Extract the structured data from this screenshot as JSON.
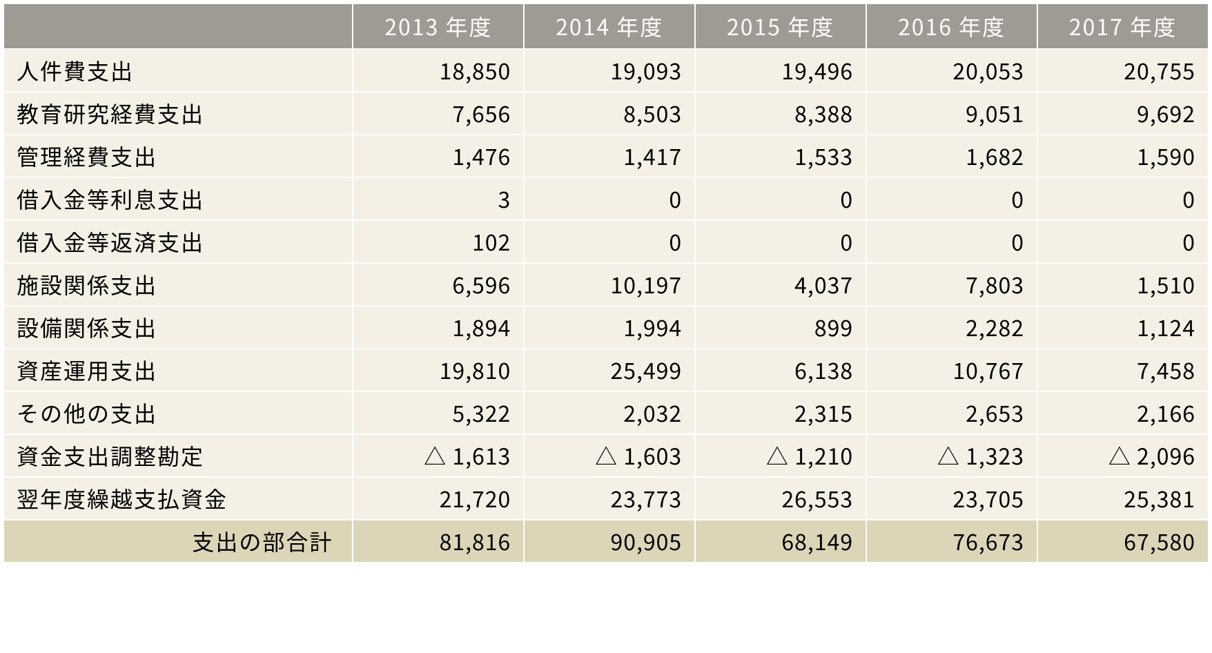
{
  "table": {
    "type": "table",
    "background_color": "#ffffff",
    "header_bg": "#9d9b93",
    "header_text_color": "#ffffff",
    "body_bg": "#f4f0e6",
    "total_bg": "#ddd5b8",
    "body_text_color": "#000000",
    "border_color": "#ffffff",
    "border_width": 2,
    "font_size_pt": 24,
    "columns": [
      "",
      "2013 年度",
      "2014 年度",
      "2015 年度",
      "2016 年度",
      "2017 年度"
    ],
    "col_widths_pct": [
      29,
      14.2,
      14.2,
      14.2,
      14.2,
      14.2
    ],
    "row_label_align": "left",
    "value_align": "right",
    "rows": [
      {
        "label": "人件費支出",
        "values": [
          "18,850",
          "19,093",
          "19,496",
          "20,053",
          "20,755"
        ],
        "total": false
      },
      {
        "label": "教育研究経費支出",
        "values": [
          "7,656",
          "8,503",
          "8,388",
          "9,051",
          "9,692"
        ],
        "total": false
      },
      {
        "label": "管理経費支出",
        "values": [
          "1,476",
          "1,417",
          "1,533",
          "1,682",
          "1,590"
        ],
        "total": false
      },
      {
        "label": "借入金等利息支出",
        "values": [
          "3",
          "0",
          "0",
          "0",
          "0"
        ],
        "total": false
      },
      {
        "label": "借入金等返済支出",
        "values": [
          "102",
          "0",
          "0",
          "0",
          "0"
        ],
        "total": false
      },
      {
        "label": "施設関係支出",
        "values": [
          "6,596",
          "10,197",
          "4,037",
          "7,803",
          "1,510"
        ],
        "total": false
      },
      {
        "label": "設備関係支出",
        "values": [
          "1,894",
          "1,994",
          "899",
          "2,282",
          "1,124"
        ],
        "total": false
      },
      {
        "label": "資産運用支出",
        "values": [
          "19,810",
          "25,499",
          "6,138",
          "10,767",
          "7,458"
        ],
        "total": false
      },
      {
        "label": "その他の支出",
        "values": [
          "5,322",
          "2,032",
          "2,315",
          "2,653",
          "2,166"
        ],
        "total": false
      },
      {
        "label": "資金支出調整勘定",
        "values": [
          "△ 1,613",
          "△ 1,603",
          "△ 1,210",
          "△ 1,323",
          "△ 2,096"
        ],
        "total": false
      },
      {
        "label": "翌年度繰越支払資金",
        "values": [
          "21,720",
          "23,773",
          "26,553",
          "23,705",
          "25,381"
        ],
        "total": false
      },
      {
        "label": "支出の部合計",
        "values": [
          "81,816",
          "90,905",
          "68,149",
          "76,673",
          "67,580"
        ],
        "total": true
      }
    ]
  }
}
